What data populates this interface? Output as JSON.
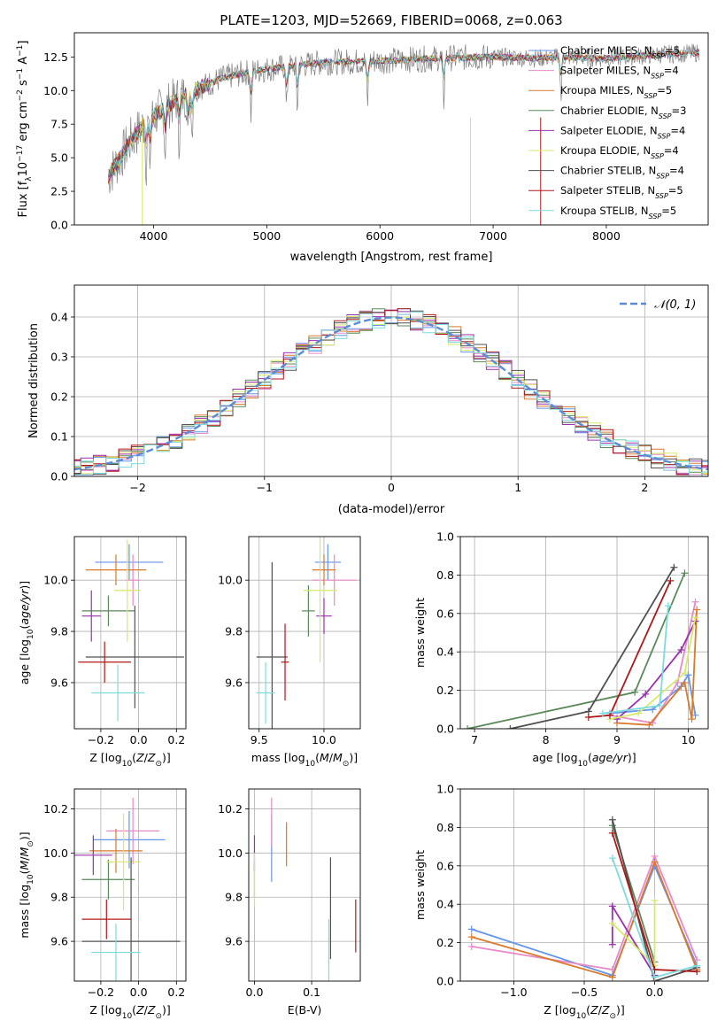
{
  "colors": {
    "Chabrier MILES": "#6495ED",
    "Salpeter MILES": "#E88AC8",
    "Kroupa MILES": "#D97A2B",
    "Chabrier ELODIE": "#5A8A5A",
    "Salpeter ELODIE": "#9A2FB0",
    "Kroupa ELODIE": "#D6EA6A",
    "Chabrier STELIB": "#505050",
    "Salpeter STELIB": "#B01818",
    "Kroupa STELIB": "#7ADCDC",
    "gauss": "#5B8DD6",
    "data": "#808080"
  },
  "chart_data": [
    {
      "type": "line",
      "title": "PLATE=1203, MJD=52669, FIBERID=0068, z=0.063",
      "xlabel": "wavelength [Angstrom, rest frame]",
      "ylabel": "Flux [fλ10⁻¹⁷ erg cm⁻² s⁻¹ A⁻¹]",
      "xlim": [
        3300,
        8900
      ],
      "ylim": [
        0,
        14.3
      ],
      "xticks": [
        "4000",
        "5000",
        "6000",
        "7000",
        "8000"
      ],
      "yticks": [
        "0.0",
        "2.5",
        "5.0",
        "7.5",
        "10.0",
        "12.5"
      ],
      "continuum": {
        "x": [
          3600,
          3700,
          3800,
          3900,
          4000,
          4200,
          4400,
          4600,
          4800,
          5000,
          5200,
          5500,
          6000,
          6500,
          7000,
          7400,
          7600,
          8000,
          8500,
          8800
        ],
        "y": [
          3.6,
          4.9,
          6.3,
          7.3,
          8.1,
          9.3,
          10.2,
          10.9,
          11.3,
          11.6,
          11.8,
          12.1,
          12.2,
          12.4,
          12.5,
          12.4,
          12.5,
          12.4,
          12.7,
          12.8
        ]
      },
      "legend": [
        {
          "label": "Chabrier MILES, N",
          "sub": "SSP",
          "tail": "=5"
        },
        {
          "label": "Salpeter MILES, N",
          "sub": "SSP",
          "tail": "=4"
        },
        {
          "label": "Kroupa MILES, N",
          "sub": "SSP",
          "tail": "=5"
        },
        {
          "label": "Chabrier ELODIE, N",
          "sub": "SSP",
          "tail": "=3"
        },
        {
          "label": "Salpeter ELODIE, N",
          "sub": "SSP",
          "tail": "=4"
        },
        {
          "label": "Kroupa ELODIE, N",
          "sub": "SSP",
          "tail": "=4"
        },
        {
          "label": "Chabrier STELIB, N",
          "sub": "SSP",
          "tail": "=4"
        },
        {
          "label": "Salpeter STELIB, N",
          "sub": "SSP",
          "tail": "=5"
        },
        {
          "label": "Kroupa STELIB, N",
          "sub": "SSP",
          "tail": "=5"
        }
      ]
    },
    {
      "type": "histogram",
      "xlabel": "(data-model)/error",
      "ylabel": "Normed distribution",
      "xlim": [
        -2.5,
        2.5
      ],
      "ylim": [
        0,
        0.48
      ],
      "xticks": [
        "−2",
        "−1",
        "0",
        "1",
        "2"
      ],
      "yticks": [
        "0.0",
        "0.1",
        "0.2",
        "0.3",
        "0.4"
      ],
      "bin_width": 0.1,
      "legend": "𝒩(0, 1)",
      "gauss_sigma": 1.0
    },
    {
      "type": "scatter",
      "name": "age-vs-Z",
      "xlabel": "Z [log₁₀(Z/Z⊙)]",
      "ylabel": "age  [log₁₀(age/yr)]",
      "xlim": [
        -0.34,
        0.25
      ],
      "ylim": [
        9.42,
        10.17
      ],
      "xticks": [
        "−0.2",
        "0.0",
        "0.2"
      ],
      "yticks": [
        "9.6",
        "9.8",
        "10.0"
      ],
      "points": [
        {
          "model": "Chabrier MILES",
          "x": -0.05,
          "xerr": 0.18,
          "y": 10.07,
          "yerr": 0.07
        },
        {
          "model": "Salpeter MILES",
          "x": -0.03,
          "xerr": 0.04,
          "y": 10.0,
          "yerr": 0.1
        },
        {
          "model": "Kroupa MILES",
          "x": -0.12,
          "xerr": 0.16,
          "y": 10.04,
          "yerr": 0.06
        },
        {
          "model": "Chabrier ELODIE",
          "x": -0.16,
          "xerr": 0.14,
          "y": 9.88,
          "yerr": 0.06
        },
        {
          "model": "Salpeter ELODIE",
          "x": -0.25,
          "xerr": 0.05,
          "y": 9.86,
          "yerr": 0.1
        },
        {
          "model": "Kroupa ELODIE",
          "x": -0.06,
          "xerr": 0.07,
          "y": 9.96,
          "yerr": 0.2
        },
        {
          "model": "Chabrier STELIB",
          "x": -0.02,
          "xerr": 0.26,
          "y": 9.7,
          "yerr": 0.2
        },
        {
          "model": "Salpeter STELIB",
          "x": -0.18,
          "xerr": 0.14,
          "y": 9.68,
          "yerr": 0.08
        },
        {
          "model": "Kroupa STELIB",
          "x": -0.11,
          "xerr": 0.14,
          "y": 9.56,
          "yerr": 0.11
        }
      ]
    },
    {
      "type": "scatter",
      "name": "age-vs-mass",
      "xlabel": "mass [log₁₀(M/M⊙)]",
      "ylabel": "",
      "xlim": [
        9.42,
        10.28
      ],
      "ylim": [
        9.42,
        10.17
      ],
      "xticks": [
        "9.5",
        "10.0"
      ],
      "yticks": [
        "9.6",
        "9.8",
        "10.0"
      ],
      "points": [
        {
          "model": "Chabrier MILES",
          "x": 10.03,
          "xerr": 0.1,
          "y": 10.07,
          "yerr": 0.07
        },
        {
          "model": "Salpeter MILES",
          "x": 10.08,
          "xerr": 0.17,
          "y": 10.0,
          "yerr": 0.1
        },
        {
          "model": "Kroupa MILES",
          "x": 10.0,
          "xerr": 0.09,
          "y": 10.04,
          "yerr": 0.06
        },
        {
          "model": "Chabrier ELODIE",
          "x": 9.88,
          "xerr": 0.05,
          "y": 9.88,
          "yerr": 0.1
        },
        {
          "model": "Salpeter ELODIE",
          "x": 10.0,
          "xerr": 0.06,
          "y": 9.86,
          "yerr": 0.07
        },
        {
          "model": "Kroupa ELODIE",
          "x": 9.97,
          "xerr": 0.13,
          "y": 9.96,
          "yerr": 0.28
        },
        {
          "model": "Chabrier STELIB",
          "x": 9.6,
          "xerr": 0.12,
          "y": 9.7,
          "yerr": 0.37
        },
        {
          "model": "Salpeter STELIB",
          "x": 9.7,
          "xerr": 0.03,
          "y": 9.68,
          "yerr": 0.15
        },
        {
          "model": "Kroupa STELIB",
          "x": 9.55,
          "xerr": 0.07,
          "y": 9.56,
          "yerr": 0.12
        }
      ]
    },
    {
      "type": "line",
      "name": "mass-weight-vs-age",
      "xlabel": "age  [log₁₀(age/yr)]",
      "ylabel": "mass weight",
      "xlim": [
        6.8,
        10.28
      ],
      "ylim": [
        0,
        1.0
      ],
      "xticks": [
        "7",
        "8",
        "9",
        "10"
      ],
      "yticks": [
        "0.0",
        "0.2",
        "0.4",
        "0.6",
        "0.8",
        "1.0"
      ],
      "series": [
        {
          "model": "Chabrier MILES",
          "x": [
            8.9,
            9.5,
            9.9,
            10.0,
            10.1
          ],
          "y": [
            0.08,
            0.1,
            0.22,
            0.28,
            0.07
          ]
        },
        {
          "model": "Salpeter MILES",
          "x": [
            8.9,
            9.5,
            9.85,
            10.1
          ],
          "y": [
            0.07,
            0.03,
            0.24,
            0.66
          ]
        },
        {
          "model": "Kroupa MILES",
          "x": [
            9.0,
            9.45,
            9.95,
            10.05,
            10.12
          ],
          "y": [
            0.03,
            0.02,
            0.24,
            0.05,
            0.62
          ]
        },
        {
          "model": "Chabrier ELODIE",
          "x": [
            6.9,
            9.25,
            9.95
          ],
          "y": [
            0.0,
            0.19,
            0.81
          ]
        },
        {
          "model": "Salpeter ELODIE",
          "x": [
            9.0,
            9.4,
            9.9,
            10.1
          ],
          "y": [
            0.05,
            0.18,
            0.41,
            0.56
          ]
        },
        {
          "model": "Kroupa ELODIE",
          "x": [
            8.9,
            9.3,
            9.95,
            10.1
          ],
          "y": [
            0.05,
            0.08,
            0.29,
            0.58
          ]
        },
        {
          "model": "Chabrier STELIB",
          "x": [
            7.5,
            8.6,
            9.8
          ],
          "y": [
            0.0,
            0.09,
            0.84
          ]
        },
        {
          "model": "Salpeter STELIB",
          "x": [
            8.6,
            8.9,
            9.75
          ],
          "y": [
            0.06,
            0.07,
            0.77
          ]
        },
        {
          "model": "Kroupa STELIB",
          "x": [
            8.8,
            9.6,
            9.72
          ],
          "y": [
            0.08,
            0.12,
            0.64
          ]
        }
      ]
    },
    {
      "type": "scatter",
      "name": "mass-vs-Z",
      "xlabel": "Z [log₁₀(Z/Z⊙)]",
      "ylabel": "mass [log₁₀(M/M⊙)]",
      "xlim": [
        -0.34,
        0.25
      ],
      "ylim": [
        9.42,
        10.29
      ],
      "xticks": [
        "−0.2",
        "0.0",
        "0.2"
      ],
      "yticks": [
        "9.6",
        "9.8",
        "10.0",
        "10.2"
      ],
      "points": [
        {
          "model": "Chabrier MILES",
          "x": -0.05,
          "xerr": 0.19,
          "y": 10.06,
          "yerr": 0.13
        },
        {
          "model": "Salpeter MILES",
          "x": -0.03,
          "xerr": 0.14,
          "y": 10.1,
          "yerr": 0.15
        },
        {
          "model": "Kroupa MILES",
          "x": -0.12,
          "xerr": 0.14,
          "y": 10.01,
          "yerr": 0.1
        },
        {
          "model": "Chabrier ELODIE",
          "x": -0.16,
          "xerr": 0.14,
          "y": 9.88,
          "yerr": 0.09
        },
        {
          "model": "Salpeter ELODIE",
          "x": -0.24,
          "xerr": 0.1,
          "y": 9.99,
          "yerr": 0.09
        },
        {
          "model": "Kroupa ELODIE",
          "x": -0.08,
          "xerr": 0.09,
          "y": 9.96,
          "yerr": 0.22
        },
        {
          "model": "Chabrier STELIB",
          "x": -0.04,
          "xerr": 0.26,
          "y": 9.6,
          "yerr": 0.38
        },
        {
          "model": "Salpeter STELIB",
          "x": -0.17,
          "xerr": 0.13,
          "y": 9.7,
          "yerr": 0.09
        },
        {
          "model": "Kroupa STELIB",
          "x": -0.12,
          "xerr": 0.13,
          "y": 9.55,
          "yerr": 0.13
        }
      ]
    },
    {
      "type": "scatter",
      "name": "mass-vs-EBV",
      "xlabel": "E(B-V)",
      "ylabel": "",
      "xlim": [
        -0.01,
        0.185
      ],
      "ylim": [
        9.42,
        10.29
      ],
      "xticks": [
        "0.0",
        "0.1"
      ],
      "yticks": [
        "9.6",
        "9.8",
        "10.0",
        "10.2"
      ],
      "points": [
        {
          "model": "Chabrier MILES",
          "x": 0.03,
          "y": 10.02,
          "yerr": 0.15
        },
        {
          "model": "Salpeter MILES",
          "x": 0.03,
          "y": 10.14,
          "yerr": 0.11
        },
        {
          "model": "Kroupa MILES",
          "x": 0.056,
          "y": 10.04,
          "yerr": 0.1
        },
        {
          "model": "Chabrier ELODIE",
          "x": 0.0,
          "y": 9.88,
          "yerr": 0.08
        },
        {
          "model": "Salpeter ELODIE",
          "x": 0.0,
          "y": 10.0,
          "yerr": 0.08
        },
        {
          "model": "Kroupa ELODIE",
          "x": 0.0,
          "y": 9.88,
          "yerr": 0.12
        },
        {
          "model": "Chabrier STELIB",
          "x": 0.133,
          "y": 9.75,
          "yerr": 0.23
        },
        {
          "model": "Salpeter STELIB",
          "x": 0.177,
          "y": 9.67,
          "yerr": 0.12
        },
        {
          "model": "Kroupa STELIB",
          "x": 0.13,
          "y": 9.55,
          "yerr": 0.15
        }
      ]
    },
    {
      "type": "line",
      "name": "mass-weight-vs-Z",
      "xlabel": "Z [log₁₀(Z/Z⊙)]",
      "ylabel": "mass weight",
      "xlim": [
        -1.38,
        0.38
      ],
      "ylim": [
        0,
        1.0
      ],
      "xticks": [
        "−1.0",
        "−0.5",
        "0.0"
      ],
      "yticks": [
        "0.0",
        "0.2",
        "0.4",
        "0.6",
        "0.8",
        "1.0"
      ],
      "series": [
        {
          "model": "Chabrier MILES",
          "x": [
            -1.3,
            -0.3,
            0.0,
            0.3
          ],
          "y": [
            0.27,
            0.03,
            0.6,
            0.08
          ]
        },
        {
          "model": "Salpeter MILES",
          "x": [
            -1.3,
            -0.3,
            0.0,
            0.3
          ],
          "y": [
            0.18,
            0.06,
            0.65,
            0.11
          ]
        },
        {
          "model": "Kroupa MILES",
          "x": [
            -1.3,
            -0.3,
            0.0,
            0.3
          ],
          "y": [
            0.23,
            0.02,
            0.62,
            0.06
          ]
        },
        {
          "model": "Chabrier ELODIE",
          "x": [
            -0.3,
            0.0
          ],
          "y": [
            0.81,
            0.1
          ]
        },
        {
          "model": "Salpeter ELODIE",
          "x": [
            -0.3,
            -0.3,
            0.0
          ],
          "y": [
            0.19,
            0.39,
            0.03
          ]
        },
        {
          "model": "Kroupa ELODIE",
          "x": [
            -0.3,
            0.0,
            0.0
          ],
          "y": [
            0.3,
            0.08,
            0.42
          ]
        },
        {
          "model": "Chabrier STELIB",
          "x": [
            -0.3,
            0.0,
            0.3
          ],
          "y": [
            0.84,
            0.0,
            0.07
          ]
        },
        {
          "model": "Salpeter STELIB",
          "x": [
            -0.3,
            0.0,
            0.3
          ],
          "y": [
            0.77,
            0.06,
            0.05
          ]
        },
        {
          "model": "Kroupa STELIB",
          "x": [
            -0.3,
            0.0,
            0.3
          ],
          "y": [
            0.64,
            0.02,
            0.08
          ]
        }
      ]
    }
  ]
}
